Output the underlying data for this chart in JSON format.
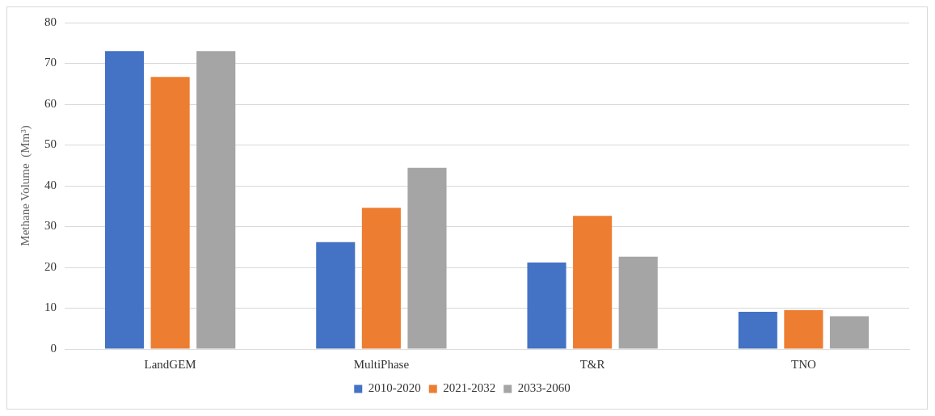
{
  "chart_data": {
    "type": "bar",
    "ylabel": "Methane Volume  (Mm³)",
    "categories": [
      "LandGEM",
      "MultiPhase",
      "T&R",
      "TNO"
    ],
    "series": [
      {
        "name": "2010-2020",
        "color": "#4472c4",
        "values": [
          73,
          26.2,
          21.2,
          9.1
        ]
      },
      {
        "name": "2021-2032",
        "color": "#ed7d31",
        "values": [
          66.7,
          34.6,
          32.6,
          9.5
        ]
      },
      {
        "name": "2033-2060",
        "color": "#a5a5a5",
        "values": [
          73,
          44.4,
          22.6,
          8.0
        ]
      }
    ],
    "ylim": [
      0,
      80
    ],
    "yticks": [
      0,
      10,
      20,
      30,
      40,
      50,
      60,
      70,
      80
    ],
    "grid": "y",
    "legend": "bottom"
  }
}
